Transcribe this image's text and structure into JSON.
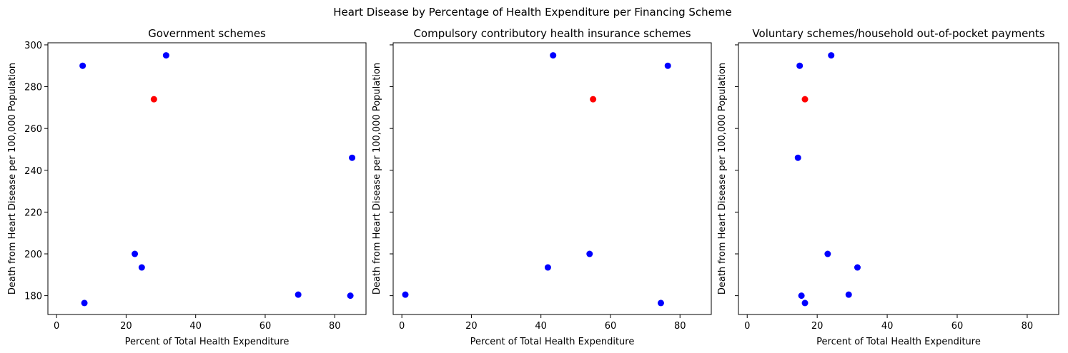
{
  "suptitle": "Heart Disease by Percentage of Health Expenditure per Financing Scheme",
  "chart_data": [
    {
      "type": "scatter",
      "title": "Government schemes",
      "xlabel": "Percent of Total Health Expenditure",
      "ylabel": "Death from Heart Disease per 100,000 Population",
      "xlim": [
        -2.5,
        89
      ],
      "ylim": [
        171,
        301
      ],
      "xticks": [
        0,
        20,
        40,
        60,
        80
      ],
      "yticks": [
        180,
        200,
        220,
        240,
        260,
        280,
        300
      ],
      "show_ytick_labels": true,
      "points": [
        {
          "x": 7.5,
          "y": 290,
          "color": "#0000ff"
        },
        {
          "x": 31.5,
          "y": 295,
          "color": "#0000ff"
        },
        {
          "x": 28.0,
          "y": 274,
          "color": "#ff0000"
        },
        {
          "x": 85.0,
          "y": 246,
          "color": "#0000ff"
        },
        {
          "x": 22.5,
          "y": 200,
          "color": "#0000ff"
        },
        {
          "x": 24.5,
          "y": 193.5,
          "color": "#0000ff"
        },
        {
          "x": 69.5,
          "y": 180.5,
          "color": "#0000ff"
        },
        {
          "x": 84.5,
          "y": 180,
          "color": "#0000ff"
        },
        {
          "x": 8.0,
          "y": 176.5,
          "color": "#0000ff"
        }
      ]
    },
    {
      "type": "scatter",
      "title": "Compulsory contributory health insurance schemes",
      "xlabel": "Percent of Total Health Expenditure",
      "ylabel": "Death from Heart Disease per 100,000 Population",
      "xlim": [
        -2.5,
        89
      ],
      "ylim": [
        171,
        301
      ],
      "xticks": [
        0,
        20,
        40,
        60,
        80
      ],
      "yticks": [
        180,
        200,
        220,
        240,
        260,
        280,
        300
      ],
      "show_ytick_labels": false,
      "points": [
        {
          "x": 43.5,
          "y": 295,
          "color": "#0000ff"
        },
        {
          "x": 76.5,
          "y": 290,
          "color": "#0000ff"
        },
        {
          "x": 55.0,
          "y": 274,
          "color": "#ff0000"
        },
        {
          "x": 54.0,
          "y": 200,
          "color": "#0000ff"
        },
        {
          "x": 42.0,
          "y": 193.5,
          "color": "#0000ff"
        },
        {
          "x": 1.0,
          "y": 180.5,
          "color": "#0000ff"
        },
        {
          "x": 74.5,
          "y": 176.5,
          "color": "#0000ff"
        }
      ]
    },
    {
      "type": "scatter",
      "title": "Voluntary schemes/household out-of-pocket payments",
      "xlabel": "Percent of Total Health Expenditure",
      "ylabel": "Death from Heart Disease per 100,000 Population",
      "xlim": [
        -2.5,
        89
      ],
      "ylim": [
        171,
        301
      ],
      "xticks": [
        0,
        20,
        40,
        60,
        80
      ],
      "yticks": [
        180,
        200,
        220,
        240,
        260,
        280,
        300
      ],
      "show_ytick_labels": false,
      "points": [
        {
          "x": 24.0,
          "y": 295,
          "color": "#0000ff"
        },
        {
          "x": 15.0,
          "y": 290,
          "color": "#0000ff"
        },
        {
          "x": 16.5,
          "y": 274,
          "color": "#ff0000"
        },
        {
          "x": 14.5,
          "y": 246,
          "color": "#0000ff"
        },
        {
          "x": 23.0,
          "y": 200,
          "color": "#0000ff"
        },
        {
          "x": 31.5,
          "y": 193.5,
          "color": "#0000ff"
        },
        {
          "x": 15.5,
          "y": 180,
          "color": "#0000ff"
        },
        {
          "x": 29.0,
          "y": 180.5,
          "color": "#0000ff"
        },
        {
          "x": 16.5,
          "y": 176.5,
          "color": "#0000ff"
        }
      ]
    }
  ]
}
